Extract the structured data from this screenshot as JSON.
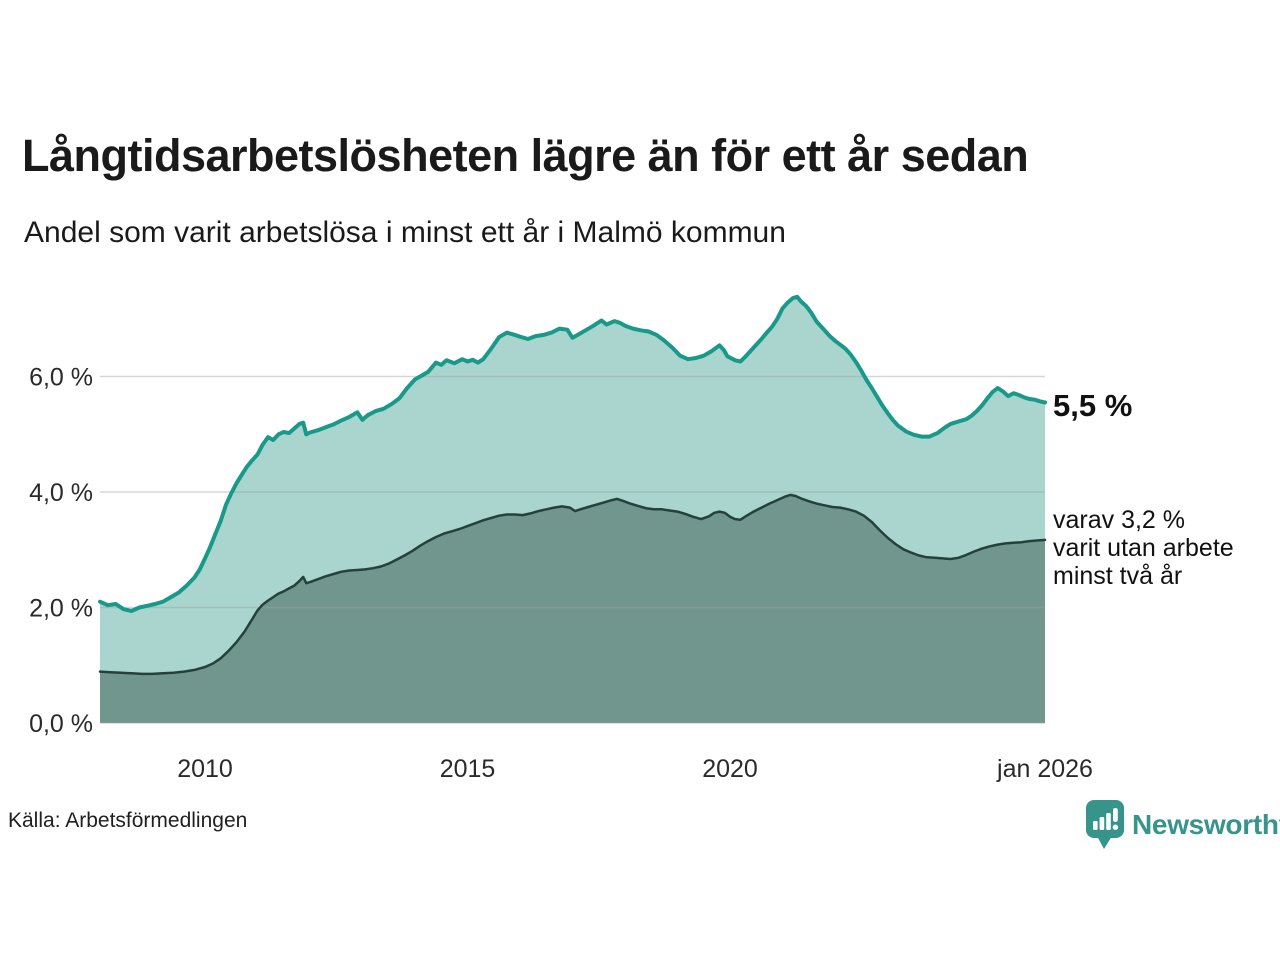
{
  "title": "Långtidsarbetslösheten lägre än för ett år sedan",
  "subtitle": "Andel som varit arbetslösa i minst ett år i Malmö kommun",
  "source": "Källa: Arbetsförmedlingen",
  "branding": {
    "logo_text": "Newsworthy"
  },
  "annotations": {
    "latest_value_label": "5,5 %",
    "secondary_lines": [
      "varav 3,2 %",
      "varit utan arbete",
      "minst två år"
    ]
  },
  "colors": {
    "background": "#ffffff",
    "title_text": "#1a1a1a",
    "tick_text": "#2a2a2a",
    "gridline": "#9aa3a0",
    "series_total_line": "#18998a",
    "series_total_fill": "#a9d5ce",
    "series_twoyear_line": "#24423c",
    "series_twoyear_fill": "#70968e",
    "brand_teal": "#37948b"
  },
  "chart_data": {
    "type": "area",
    "title": "Långtidsarbetslösheten lägre än för ett år sedan",
    "subtitle": "Andel som varit arbetslösa i minst ett år i Malmö kommun",
    "grid": "horizontal-only",
    "legend_position": "none",
    "x_axis": {
      "range": [
        2008.0,
        2026.0
      ],
      "ticks": [
        {
          "label": "2010",
          "t": 2010.0
        },
        {
          "label": "2015",
          "t": 2015.0
        },
        {
          "label": "2020",
          "t": 2020.0
        },
        {
          "label": "jan 2026",
          "t": 2026.0
        }
      ]
    },
    "y_axis": {
      "unit": "%",
      "range": [
        0,
        7.6
      ],
      "ticks": [
        {
          "label": "0,0 %",
          "value": 0
        },
        {
          "label": "2,0 %",
          "value": 2
        },
        {
          "label": "4,0 %",
          "value": 4
        },
        {
          "label": "6,0 %",
          "value": 6
        }
      ]
    },
    "series": [
      {
        "id": "unemployed-min-one-year",
        "latest_label": "5,5 %",
        "line_color": "#18998a",
        "fill_color": "#a9d5ce",
        "line_width": 4,
        "points": [
          [
            2008.0,
            2.1
          ],
          [
            2008.15,
            2.04
          ],
          [
            2008.3,
            2.06
          ],
          [
            2008.45,
            1.97
          ],
          [
            2008.6,
            1.94
          ],
          [
            2008.75,
            2.0
          ],
          [
            2008.9,
            2.03
          ],
          [
            2009.05,
            2.06
          ],
          [
            2009.2,
            2.1
          ],
          [
            2009.35,
            2.18
          ],
          [
            2009.5,
            2.26
          ],
          [
            2009.65,
            2.38
          ],
          [
            2009.8,
            2.52
          ],
          [
            2009.9,
            2.66
          ],
          [
            2010.0,
            2.85
          ],
          [
            2010.1,
            3.05
          ],
          [
            2010.2,
            3.28
          ],
          [
            2010.3,
            3.5
          ],
          [
            2010.4,
            3.78
          ],
          [
            2010.5,
            3.98
          ],
          [
            2010.6,
            4.15
          ],
          [
            2010.7,
            4.3
          ],
          [
            2010.8,
            4.44
          ],
          [
            2010.9,
            4.55
          ],
          [
            2011.0,
            4.65
          ],
          [
            2011.1,
            4.82
          ],
          [
            2011.2,
            4.95
          ],
          [
            2011.3,
            4.9
          ],
          [
            2011.4,
            5.0
          ],
          [
            2011.5,
            5.04
          ],
          [
            2011.6,
            5.02
          ],
          [
            2011.7,
            5.1
          ],
          [
            2011.8,
            5.18
          ],
          [
            2011.87,
            5.2
          ],
          [
            2011.93,
            5.0
          ],
          [
            2012.0,
            5.03
          ],
          [
            2012.15,
            5.07
          ],
          [
            2012.3,
            5.12
          ],
          [
            2012.45,
            5.17
          ],
          [
            2012.6,
            5.24
          ],
          [
            2012.75,
            5.3
          ],
          [
            2012.9,
            5.38
          ],
          [
            2013.0,
            5.25
          ],
          [
            2013.1,
            5.33
          ],
          [
            2013.25,
            5.4
          ],
          [
            2013.4,
            5.44
          ],
          [
            2013.55,
            5.52
          ],
          [
            2013.7,
            5.62
          ],
          [
            2013.85,
            5.8
          ],
          [
            2014.0,
            5.95
          ],
          [
            2014.1,
            6.0
          ],
          [
            2014.25,
            6.08
          ],
          [
            2014.4,
            6.24
          ],
          [
            2014.5,
            6.2
          ],
          [
            2014.6,
            6.28
          ],
          [
            2014.75,
            6.23
          ],
          [
            2014.9,
            6.3
          ],
          [
            2015.0,
            6.26
          ],
          [
            2015.1,
            6.29
          ],
          [
            2015.2,
            6.24
          ],
          [
            2015.3,
            6.3
          ],
          [
            2015.45,
            6.48
          ],
          [
            2015.6,
            6.68
          ],
          [
            2015.75,
            6.76
          ],
          [
            2015.9,
            6.72
          ],
          [
            2016.0,
            6.69
          ],
          [
            2016.15,
            6.65
          ],
          [
            2016.3,
            6.7
          ],
          [
            2016.45,
            6.72
          ],
          [
            2016.6,
            6.76
          ],
          [
            2016.75,
            6.83
          ],
          [
            2016.9,
            6.81
          ],
          [
            2017.0,
            6.67
          ],
          [
            2017.1,
            6.72
          ],
          [
            2017.25,
            6.8
          ],
          [
            2017.4,
            6.88
          ],
          [
            2017.55,
            6.97
          ],
          [
            2017.65,
            6.9
          ],
          [
            2017.8,
            6.96
          ],
          [
            2017.9,
            6.93
          ],
          [
            2018.0,
            6.88
          ],
          [
            2018.15,
            6.83
          ],
          [
            2018.3,
            6.8
          ],
          [
            2018.45,
            6.78
          ],
          [
            2018.6,
            6.72
          ],
          [
            2018.75,
            6.62
          ],
          [
            2018.9,
            6.5
          ],
          [
            2019.05,
            6.36
          ],
          [
            2019.2,
            6.3
          ],
          [
            2019.35,
            6.32
          ],
          [
            2019.5,
            6.36
          ],
          [
            2019.65,
            6.44
          ],
          [
            2019.8,
            6.54
          ],
          [
            2019.88,
            6.46
          ],
          [
            2019.95,
            6.35
          ],
          [
            2020.1,
            6.28
          ],
          [
            2020.2,
            6.26
          ],
          [
            2020.3,
            6.35
          ],
          [
            2020.45,
            6.5
          ],
          [
            2020.6,
            6.65
          ],
          [
            2020.7,
            6.76
          ],
          [
            2020.8,
            6.86
          ],
          [
            2020.9,
            7.0
          ],
          [
            2021.0,
            7.18
          ],
          [
            2021.1,
            7.28
          ],
          [
            2021.2,
            7.36
          ],
          [
            2021.28,
            7.38
          ],
          [
            2021.35,
            7.3
          ],
          [
            2021.45,
            7.22
          ],
          [
            2021.55,
            7.1
          ],
          [
            2021.65,
            6.95
          ],
          [
            2021.75,
            6.85
          ],
          [
            2021.9,
            6.7
          ],
          [
            2022.0,
            6.62
          ],
          [
            2022.1,
            6.55
          ],
          [
            2022.2,
            6.48
          ],
          [
            2022.3,
            6.38
          ],
          [
            2022.4,
            6.25
          ],
          [
            2022.5,
            6.1
          ],
          [
            2022.6,
            5.94
          ],
          [
            2022.7,
            5.8
          ],
          [
            2022.8,
            5.65
          ],
          [
            2022.9,
            5.5
          ],
          [
            2023.0,
            5.37
          ],
          [
            2023.1,
            5.25
          ],
          [
            2023.2,
            5.15
          ],
          [
            2023.35,
            5.05
          ],
          [
            2023.5,
            4.99
          ],
          [
            2023.65,
            4.96
          ],
          [
            2023.8,
            4.96
          ],
          [
            2023.95,
            5.02
          ],
          [
            2024.1,
            5.12
          ],
          [
            2024.2,
            5.18
          ],
          [
            2024.35,
            5.22
          ],
          [
            2024.5,
            5.26
          ],
          [
            2024.6,
            5.32
          ],
          [
            2024.7,
            5.4
          ],
          [
            2024.8,
            5.5
          ],
          [
            2024.9,
            5.62
          ],
          [
            2025.0,
            5.73
          ],
          [
            2025.1,
            5.8
          ],
          [
            2025.2,
            5.74
          ],
          [
            2025.3,
            5.66
          ],
          [
            2025.4,
            5.71
          ],
          [
            2025.5,
            5.68
          ],
          [
            2025.6,
            5.64
          ],
          [
            2025.7,
            5.61
          ],
          [
            2025.8,
            5.6
          ],
          [
            2025.9,
            5.57
          ],
          [
            2026.0,
            5.55
          ]
        ]
      },
      {
        "id": "unemployed-min-two-years",
        "latest_label": "3,2 %",
        "line_color": "#24423c",
        "fill_color": "#70968e",
        "line_width": 2.5,
        "points": [
          [
            2008.0,
            0.89
          ],
          [
            2008.2,
            0.88
          ],
          [
            2008.4,
            0.87
          ],
          [
            2008.6,
            0.86
          ],
          [
            2008.8,
            0.85
          ],
          [
            2009.0,
            0.85
          ],
          [
            2009.2,
            0.86
          ],
          [
            2009.4,
            0.87
          ],
          [
            2009.6,
            0.89
          ],
          [
            2009.8,
            0.92
          ],
          [
            2010.0,
            0.97
          ],
          [
            2010.15,
            1.03
          ],
          [
            2010.3,
            1.12
          ],
          [
            2010.45,
            1.25
          ],
          [
            2010.6,
            1.4
          ],
          [
            2010.75,
            1.58
          ],
          [
            2010.9,
            1.8
          ],
          [
            2011.0,
            1.95
          ],
          [
            2011.1,
            2.05
          ],
          [
            2011.2,
            2.12
          ],
          [
            2011.3,
            2.18
          ],
          [
            2011.4,
            2.24
          ],
          [
            2011.5,
            2.28
          ],
          [
            2011.6,
            2.33
          ],
          [
            2011.7,
            2.38
          ],
          [
            2011.8,
            2.46
          ],
          [
            2011.87,
            2.53
          ],
          [
            2011.93,
            2.42
          ],
          [
            2012.0,
            2.44
          ],
          [
            2012.15,
            2.49
          ],
          [
            2012.3,
            2.54
          ],
          [
            2012.45,
            2.58
          ],
          [
            2012.6,
            2.62
          ],
          [
            2012.75,
            2.64
          ],
          [
            2012.9,
            2.65
          ],
          [
            2013.05,
            2.66
          ],
          [
            2013.2,
            2.68
          ],
          [
            2013.35,
            2.71
          ],
          [
            2013.5,
            2.76
          ],
          [
            2013.65,
            2.83
          ],
          [
            2013.8,
            2.9
          ],
          [
            2013.95,
            2.98
          ],
          [
            2014.1,
            3.07
          ],
          [
            2014.25,
            3.15
          ],
          [
            2014.4,
            3.22
          ],
          [
            2014.55,
            3.28
          ],
          [
            2014.7,
            3.32
          ],
          [
            2014.85,
            3.36
          ],
          [
            2015.0,
            3.41
          ],
          [
            2015.15,
            3.46
          ],
          [
            2015.3,
            3.51
          ],
          [
            2015.45,
            3.55
          ],
          [
            2015.6,
            3.59
          ],
          [
            2015.75,
            3.61
          ],
          [
            2015.9,
            3.61
          ],
          [
            2016.05,
            3.6
          ],
          [
            2016.2,
            3.63
          ],
          [
            2016.35,
            3.67
          ],
          [
            2016.5,
            3.7
          ],
          [
            2016.65,
            3.73
          ],
          [
            2016.8,
            3.75
          ],
          [
            2016.95,
            3.73
          ],
          [
            2017.05,
            3.67
          ],
          [
            2017.15,
            3.7
          ],
          [
            2017.3,
            3.74
          ],
          [
            2017.45,
            3.78
          ],
          [
            2017.6,
            3.82
          ],
          [
            2017.75,
            3.86
          ],
          [
            2017.85,
            3.88
          ],
          [
            2017.95,
            3.85
          ],
          [
            2018.1,
            3.8
          ],
          [
            2018.25,
            3.76
          ],
          [
            2018.4,
            3.72
          ],
          [
            2018.55,
            3.7
          ],
          [
            2018.7,
            3.7
          ],
          [
            2018.85,
            3.68
          ],
          [
            2019.0,
            3.66
          ],
          [
            2019.15,
            3.62
          ],
          [
            2019.3,
            3.57
          ],
          [
            2019.45,
            3.53
          ],
          [
            2019.6,
            3.58
          ],
          [
            2019.7,
            3.64
          ],
          [
            2019.8,
            3.66
          ],
          [
            2019.9,
            3.64
          ],
          [
            2020.0,
            3.57
          ],
          [
            2020.1,
            3.53
          ],
          [
            2020.2,
            3.52
          ],
          [
            2020.3,
            3.58
          ],
          [
            2020.45,
            3.66
          ],
          [
            2020.6,
            3.73
          ],
          [
            2020.75,
            3.8
          ],
          [
            2020.9,
            3.86
          ],
          [
            2021.05,
            3.92
          ],
          [
            2021.15,
            3.95
          ],
          [
            2021.25,
            3.93
          ],
          [
            2021.35,
            3.89
          ],
          [
            2021.5,
            3.84
          ],
          [
            2021.65,
            3.8
          ],
          [
            2021.8,
            3.77
          ],
          [
            2021.95,
            3.74
          ],
          [
            2022.1,
            3.73
          ],
          [
            2022.25,
            3.7
          ],
          [
            2022.4,
            3.66
          ],
          [
            2022.55,
            3.59
          ],
          [
            2022.7,
            3.48
          ],
          [
            2022.85,
            3.34
          ],
          [
            2023.0,
            3.21
          ],
          [
            2023.15,
            3.1
          ],
          [
            2023.3,
            3.01
          ],
          [
            2023.45,
            2.95
          ],
          [
            2023.6,
            2.9
          ],
          [
            2023.75,
            2.87
          ],
          [
            2023.9,
            2.86
          ],
          [
            2024.05,
            2.85
          ],
          [
            2024.2,
            2.84
          ],
          [
            2024.35,
            2.86
          ],
          [
            2024.5,
            2.91
          ],
          [
            2024.65,
            2.97
          ],
          [
            2024.8,
            3.02
          ],
          [
            2024.95,
            3.06
          ],
          [
            2025.1,
            3.09
          ],
          [
            2025.25,
            3.11
          ],
          [
            2025.4,
            3.12
          ],
          [
            2025.55,
            3.13
          ],
          [
            2025.7,
            3.15
          ],
          [
            2025.85,
            3.16
          ],
          [
            2026.0,
            3.17
          ]
        ]
      }
    ]
  }
}
